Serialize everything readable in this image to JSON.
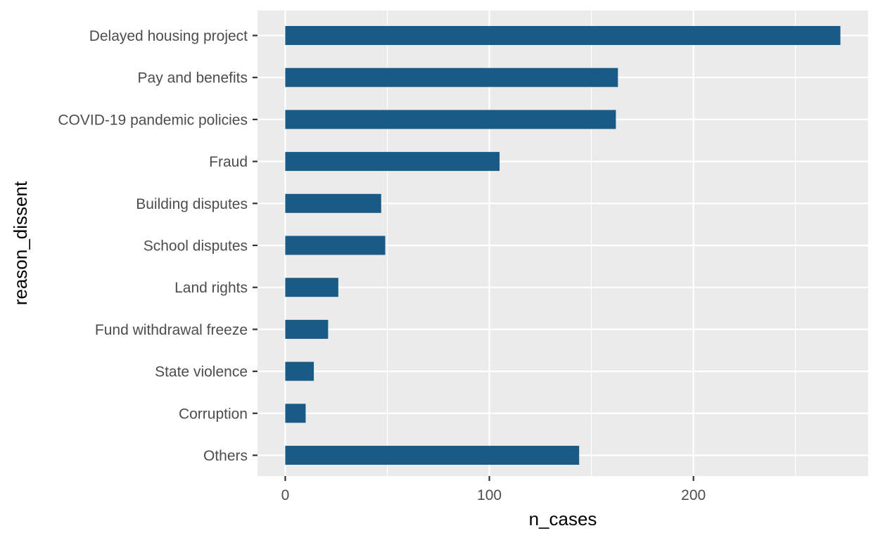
{
  "chart_data": {
    "type": "bar",
    "orientation": "horizontal",
    "categories": [
      "Delayed housing project",
      "Pay and benefits",
      "COVID-19 pandemic policies",
      "Fraud",
      "Building disputes",
      "School disputes",
      "Land rights",
      "Fund withdrawal freeze",
      "State violence",
      "Corruption",
      "Others"
    ],
    "values": [
      272,
      163,
      162,
      105,
      47,
      49,
      26,
      21,
      14,
      10,
      144
    ],
    "xlabel": "n_cases",
    "ylabel": "reason_dissent",
    "xlim": [
      -13.6,
      285.6
    ],
    "x_ticks": [
      0,
      100,
      200
    ],
    "grid": true,
    "bar_color": "#1a5a87",
    "panel_background": "#ebebeb",
    "grid_color": "#ffffff"
  }
}
